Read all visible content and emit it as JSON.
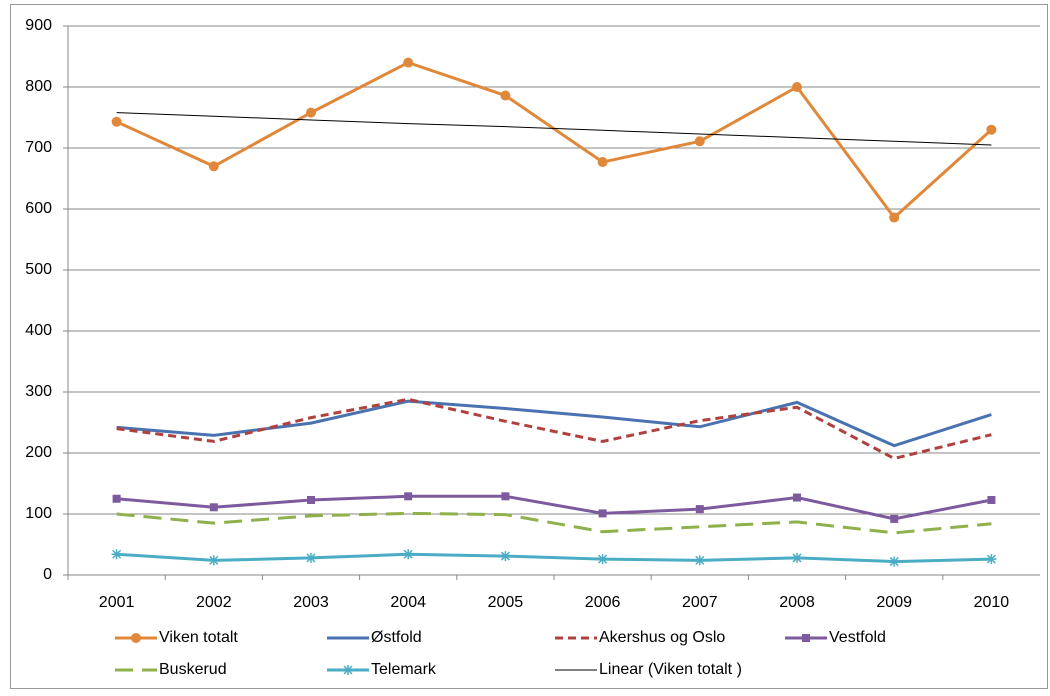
{
  "chart_data": {
    "type": "line",
    "categories": [
      "2001",
      "2002",
      "2003",
      "2004",
      "2005",
      "2006",
      "2007",
      "2008",
      "2009",
      "2010"
    ],
    "ylim": [
      0,
      900
    ],
    "yticks": [
      0,
      100,
      200,
      300,
      400,
      500,
      600,
      700,
      800,
      900
    ],
    "grid": true,
    "series": [
      {
        "name": "Viken totalt",
        "color": "#E0883A",
        "marker": "circle",
        "dash": "solid",
        "values": [
          743,
          670,
          758,
          840,
          786,
          677,
          711,
          800,
          586,
          730
        ]
      },
      {
        "name": "Østfold",
        "color": "#4A72B0",
        "marker": "none",
        "dash": "solid",
        "values": [
          242,
          229,
          249,
          285,
          273,
          259,
          243,
          283,
          212,
          263
        ]
      },
      {
        "name": "Akershus og Oslo",
        "color": "#B0413E",
        "marker": "none",
        "dash": "dash",
        "values": [
          240,
          219,
          258,
          288,
          252,
          219,
          253,
          275,
          191,
          230
        ]
      },
      {
        "name": "Vestfold",
        "color": "#7D5A9E",
        "marker": "square",
        "dash": "solid",
        "values": [
          125,
          111,
          123,
          129,
          129,
          101,
          108,
          127,
          92,
          123
        ]
      },
      {
        "name": "Buskerud",
        "color": "#8FB04A",
        "marker": "none",
        "dash": "longdash",
        "values": [
          100,
          85,
          97,
          101,
          99,
          71,
          79,
          87,
          69,
          84
        ]
      },
      {
        "name": "Telemark",
        "color": "#4AACC5",
        "marker": "star",
        "dash": "solid",
        "values": [
          34,
          24,
          28,
          34,
          31,
          26,
          24,
          28,
          22,
          26
        ]
      },
      {
        "name": "Linear (Viken totalt )",
        "color": "#000000",
        "marker": "none",
        "dash": "thin",
        "values": [
          758,
          752,
          746,
          740,
          735,
          729,
          723,
          717,
          711,
          705
        ]
      }
    ]
  }
}
